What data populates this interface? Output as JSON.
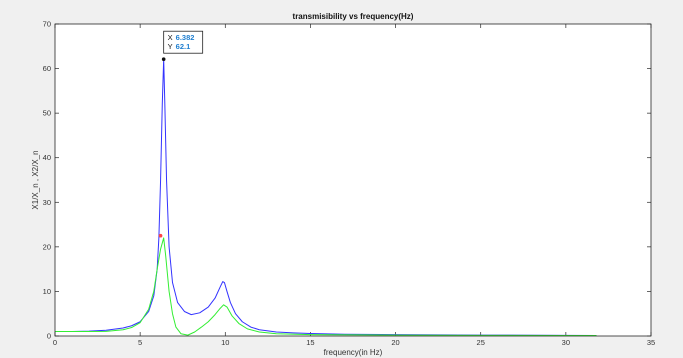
{
  "chart_data": {
    "type": "line",
    "title": "transmisibility vs frequency(Hz)",
    "xlabel": "frequency(in Hz)",
    "ylabel": "X1/X_n , X2/X_n",
    "xlim": [
      0,
      35
    ],
    "ylim": [
      0,
      70
    ],
    "xticks": [
      "0",
      "5",
      "10",
      "15",
      "20",
      "25",
      "30",
      "35"
    ],
    "yticks": [
      "0",
      "10",
      "20",
      "30",
      "40",
      "50",
      "60",
      "70"
    ],
    "grid": false,
    "series": [
      {
        "color": "#3333ff",
        "x": [
          0,
          1,
          2,
          3,
          4,
          4.5,
          5,
          5.5,
          5.8,
          6.0,
          6.1,
          6.2,
          6.3,
          6.382,
          6.45,
          6.55,
          6.7,
          6.9,
          7.2,
          7.6,
          8.0,
          8.5,
          9.0,
          9.4,
          9.7,
          9.85,
          9.95,
          10.1,
          10.3,
          10.6,
          11,
          11.5,
          12,
          13,
          14,
          15,
          17,
          20,
          25,
          30,
          31.8
        ],
        "y": [
          1.0,
          1.02,
          1.1,
          1.3,
          1.8,
          2.3,
          3.2,
          5.5,
          9.0,
          15.0,
          22.0,
          35.0,
          52.0,
          62.1,
          52.0,
          35.0,
          20.0,
          12.0,
          7.5,
          5.5,
          4.8,
          5.2,
          6.5,
          8.5,
          11.0,
          12.2,
          12.0,
          10.0,
          7.5,
          5.0,
          3.2,
          2.0,
          1.4,
          0.9,
          0.7,
          0.55,
          0.4,
          0.3,
          0.2,
          0.15,
          0.12
        ]
      },
      {
        "color": "#33ee33",
        "x": [
          0,
          1,
          2,
          3,
          4,
          4.5,
          5,
          5.5,
          5.8,
          6.0,
          6.2,
          6.382,
          6.5,
          6.7,
          6.9,
          7.1,
          7.4,
          7.8,
          8.2,
          8.6,
          9.0,
          9.4,
          9.7,
          9.9,
          10.1,
          10.4,
          10.8,
          11.3,
          12,
          13,
          15,
          20,
          25,
          30,
          31.8
        ],
        "y": [
          1.0,
          1.0,
          1.0,
          1.05,
          1.4,
          1.9,
          3.0,
          6.0,
          10.0,
          15.0,
          19.5,
          22.0,
          18.0,
          10.0,
          5.0,
          2.0,
          0.5,
          0.2,
          0.9,
          2.0,
          3.2,
          4.8,
          6.2,
          7.0,
          6.5,
          4.5,
          2.8,
          1.6,
          0.9,
          0.5,
          0.3,
          0.2,
          0.15,
          0.12,
          0.1
        ]
      }
    ],
    "markers": [
      {
        "x": 6.382,
        "y": 62.1,
        "color": "#111111"
      },
      {
        "x": 6.2,
        "y": 22.5,
        "color": "#ff4444"
      }
    ],
    "datatip": {
      "x_label": "X",
      "x_value": "6.382",
      "y_label": "Y",
      "y_value": "62.1",
      "value_color": "#1f7fd0"
    }
  }
}
